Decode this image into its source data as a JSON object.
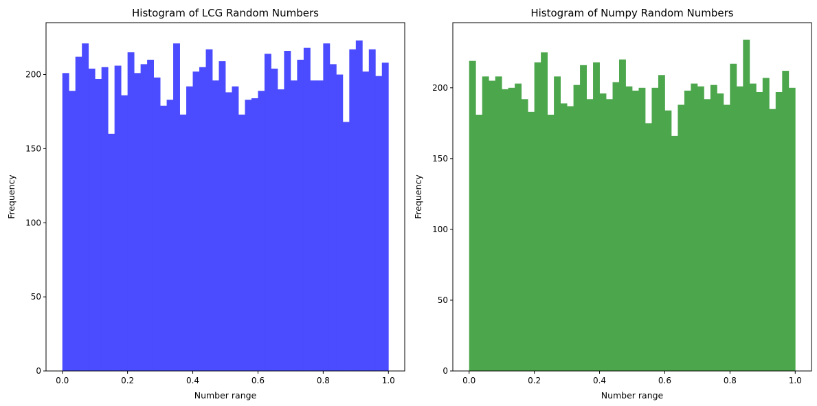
{
  "chart_data": [
    {
      "type": "bar",
      "title": "Histogram of LCG Random Numbers",
      "xlabel": "Number range",
      "ylabel": "Frequency",
      "xlim": [
        -0.05,
        1.05
      ],
      "ylim": [
        0,
        235
      ],
      "xticks": [
        0.0,
        0.2,
        0.4,
        0.6,
        0.8,
        1.0
      ],
      "xtick_labels": [
        "0.0",
        "0.2",
        "0.4",
        "0.6",
        "0.8",
        "1.0"
      ],
      "yticks": [
        0,
        50,
        100,
        150,
        200
      ],
      "ytick_labels": [
        "0",
        "50",
        "100",
        "150",
        "200"
      ],
      "bins": 50,
      "bin_range": [
        0.0,
        1.0
      ],
      "color": "#4b4bff",
      "values": [
        201,
        189,
        212,
        221,
        204,
        197,
        205,
        160,
        206,
        186,
        215,
        201,
        207,
        210,
        198,
        179,
        183,
        221,
        173,
        192,
        202,
        205,
        217,
        196,
        209,
        188,
        192,
        173,
        183,
        184,
        189,
        214,
        204,
        190,
        216,
        196,
        210,
        218,
        196,
        196,
        221,
        207,
        200,
        168,
        217,
        223,
        202,
        217,
        199,
        208
      ]
    },
    {
      "type": "bar",
      "title": "Histogram of Numpy Random Numbers",
      "xlabel": "Number range",
      "ylabel": "Frequency",
      "xlim": [
        -0.05,
        1.05
      ],
      "ylim": [
        0,
        246
      ],
      "xticks": [
        0.0,
        0.2,
        0.4,
        0.6,
        0.8,
        1.0
      ],
      "xtick_labels": [
        "0.0",
        "0.2",
        "0.4",
        "0.6",
        "0.8",
        "1.0"
      ],
      "yticks": [
        0,
        50,
        100,
        150,
        200
      ],
      "ytick_labels": [
        "0",
        "50",
        "100",
        "150",
        "200"
      ],
      "bins": 50,
      "bin_range": [
        0.0,
        1.0
      ],
      "color": "#4ca64c",
      "values": [
        219,
        181,
        208,
        205,
        208,
        199,
        200,
        203,
        192,
        183,
        218,
        225,
        181,
        208,
        189,
        187,
        202,
        216,
        192,
        218,
        196,
        192,
        204,
        220,
        201,
        198,
        200,
        175,
        200,
        209,
        184,
        166,
        188,
        198,
        203,
        201,
        192,
        202,
        196,
        188,
        217,
        201,
        234,
        203,
        197,
        207,
        185,
        197,
        212,
        200
      ]
    }
  ]
}
